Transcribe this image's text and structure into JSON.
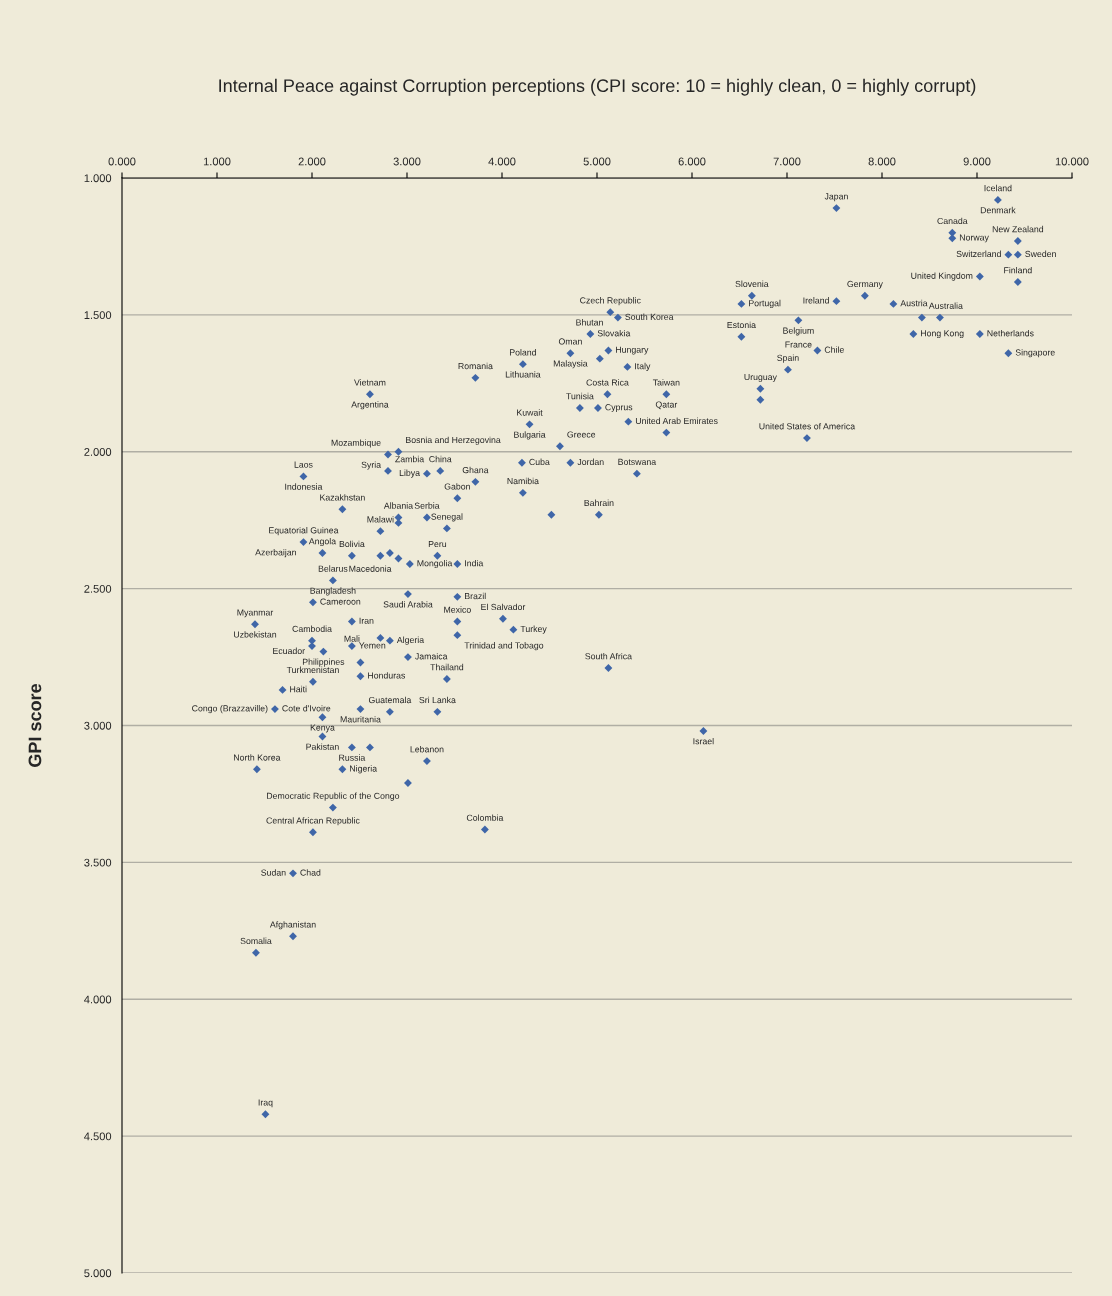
{
  "chart_data": {
    "type": "scatter",
    "title": "Internal Peace against Corruption perceptions (CPI score: 10 = highly clean, 0 = highly corrupt)",
    "ylabel": "GPI score",
    "xlim": [
      0,
      10
    ],
    "ylim": [
      5,
      1
    ],
    "xticks": [
      {
        "value": 0,
        "label": "0.000"
      },
      {
        "value": 1,
        "label": "1.000"
      },
      {
        "value": 2,
        "label": "2.000"
      },
      {
        "value": 3,
        "label": "3.000"
      },
      {
        "value": 4,
        "label": "4.000"
      },
      {
        "value": 5,
        "label": "5.000"
      },
      {
        "value": 6,
        "label": "6.000"
      },
      {
        "value": 7,
        "label": "7.000"
      },
      {
        "value": 8,
        "label": "8.000"
      },
      {
        "value": 9,
        "label": "9.000"
      },
      {
        "value": 10,
        "label": "10.000"
      }
    ],
    "yticks": [
      {
        "value": 1,
        "label": "1.000"
      },
      {
        "value": 1.5,
        "label": "1.500"
      },
      {
        "value": 2,
        "label": "2.000"
      },
      {
        "value": 2.5,
        "label": "2.500"
      },
      {
        "value": 3,
        "label": "3.000"
      },
      {
        "value": 3.5,
        "label": "3.500"
      },
      {
        "value": 4,
        "label": "4.000"
      },
      {
        "value": 4.5,
        "label": "4.500"
      },
      {
        "value": 5,
        "label": "5.000"
      }
    ],
    "grid": "y",
    "marker": "diamond",
    "series": [
      {
        "color": "#3f66a8",
        "x": [
          9.22,
          7.52,
          8.74,
          8.74,
          9.43,
          9.33,
          9.43,
          9.03,
          9.43,
          6.63,
          6.52,
          7.52,
          7.82,
          8.12,
          7.12,
          8.42,
          8.61,
          8.33,
          9.03,
          6.52,
          7.32,
          9.33,
          7.01,
          6.72,
          6.72,
          7.21,
          5.22,
          5.14,
          4.93,
          5.12,
          5.03,
          4.72,
          4.22,
          3.72,
          5.32,
          5.73,
          5.11,
          5.01,
          4.82,
          4.29,
          5.33,
          5.73,
          4.61,
          4.72,
          5.42,
          4.21,
          4.22,
          4.52,
          5.02,
          5.12,
          6.12,
          4.01,
          4.12,
          3.53,
          3.53,
          3.42,
          3.32,
          3.32,
          3.53,
          3.53,
          3.42,
          3.21,
          3.53,
          3.72,
          3.21,
          3.35,
          2.61,
          1.91,
          2.8,
          2.8,
          2.91,
          2.32,
          2.91,
          2.91,
          2.72,
          1.91,
          2.42,
          2.72,
          2.82,
          2.91,
          2.11,
          3.03,
          2.22,
          3.01,
          2.01,
          1.4,
          2.42,
          2.0,
          2.0,
          2.12,
          2.42,
          2.82,
          2.72,
          2.51,
          2.51,
          3.01,
          2.01,
          1.69,
          1.61,
          2.51,
          2.82,
          2.11,
          2.11,
          2.42,
          2.61,
          1.42,
          2.32,
          3.21,
          3.01,
          2.22,
          2.01,
          3.82,
          1.8,
          1.8,
          1.41,
          1.51
        ],
        "values": [
          1.08,
          1.11,
          1.2,
          1.22,
          1.23,
          1.28,
          1.28,
          1.36,
          1.38,
          1.43,
          1.46,
          1.45,
          1.43,
          1.46,
          1.52,
          1.51,
          1.51,
          1.57,
          1.57,
          1.58,
          1.63,
          1.64,
          1.7,
          1.77,
          1.81,
          1.95,
          1.51,
          1.49,
          1.57,
          1.63,
          1.66,
          1.64,
          1.68,
          1.73,
          1.69,
          1.79,
          1.79,
          1.84,
          1.84,
          1.9,
          1.89,
          1.93,
          1.98,
          2.04,
          2.08,
          2.04,
          2.15,
          2.23,
          2.23,
          2.79,
          3.02,
          2.61,
          2.65,
          2.62,
          2.67,
          2.83,
          2.95,
          2.38,
          2.41,
          2.53,
          2.28,
          2.24,
          2.17,
          2.11,
          2.08,
          2.07,
          1.79,
          2.09,
          2.07,
          2.01,
          2.0,
          2.21,
          2.24,
          2.26,
          2.29,
          2.33,
          2.38,
          2.38,
          2.37,
          2.39,
          2.37,
          2.41,
          2.47,
          2.52,
          2.55,
          2.63,
          2.62,
          2.69,
          2.71,
          2.73,
          2.71,
          2.69,
          2.68,
          2.77,
          2.82,
          2.75,
          2.84,
          2.87,
          2.94,
          2.94,
          2.95,
          2.97,
          3.04,
          3.08,
          3.08,
          3.16,
          3.16,
          3.13,
          3.21,
          3.3,
          3.39,
          3.38,
          3.54,
          3.77,
          3.83,
          4.42
        ]
      }
    ],
    "annotations": [
      {
        "text": "Iceland",
        "x": 9.22,
        "y": 1.08
      },
      {
        "text": "Denmark",
        "x": 9.22,
        "y": 1.08
      },
      {
        "text": "Japan",
        "x": 7.52,
        "y": 1.11
      },
      {
        "text": "Canada",
        "x": 8.74,
        "y": 1.2
      },
      {
        "text": "Norway",
        "x": 8.74,
        "y": 1.22
      },
      {
        "text": "New Zealand",
        "x": 9.43,
        "y": 1.23
      },
      {
        "text": "Switzerland",
        "x": 9.33,
        "y": 1.28
      },
      {
        "text": "Sweden",
        "x": 9.43,
        "y": 1.28
      },
      {
        "text": "Finland",
        "x": 9.43,
        "y": 1.38
      },
      {
        "text": "Slovenia",
        "x": 6.63,
        "y": 1.43
      },
      {
        "text": "Germany",
        "x": 7.82,
        "y": 1.43
      },
      {
        "text": "Portugal",
        "x": 6.52,
        "y": 1.46
      },
      {
        "text": "Ireland",
        "x": 7.52,
        "y": 1.45
      },
      {
        "text": "Austria",
        "x": 8.12,
        "y": 1.46
      },
      {
        "text": "Belgium",
        "x": 7.12,
        "y": 1.52
      },
      {
        "text": "Australia",
        "x": 8.42,
        "y": 1.51
      },
      {
        "text": "United Kingdom",
        "x": 9.03,
        "y": 1.36
      },
      {
        "text": "Estonia",
        "x": 6.52,
        "y": 1.58
      },
      {
        "text": "Hong Kong",
        "x": 8.33,
        "y": 1.57
      },
      {
        "text": "Netherlands",
        "x": 9.03,
        "y": 1.57
      },
      {
        "text": "France",
        "x": 7.12,
        "y": 1.52
      },
      {
        "text": "Chile",
        "x": 7.32,
        "y": 1.63
      },
      {
        "text": "Singapore",
        "x": 9.33,
        "y": 1.64
      },
      {
        "text": "Spain",
        "x": 7.01,
        "y": 1.7
      },
      {
        "text": "Uruguay",
        "x": 6.72,
        "y": 1.77
      },
      {
        "text": "United States of America",
        "x": 7.21,
        "y": 1.95
      },
      {
        "text": "Czech Republic",
        "x": 5.14,
        "y": 1.49
      },
      {
        "text": "Bhutan",
        "x": 5.14,
        "y": 1.49
      },
      {
        "text": "Slovakia",
        "x": 4.93,
        "y": 1.57
      },
      {
        "text": "South Korea",
        "x": 5.22,
        "y": 1.51
      },
      {
        "text": "Oman",
        "x": 4.72,
        "y": 1.64
      },
      {
        "text": "Poland",
        "x": 4.22,
        "y": 1.68
      },
      {
        "text": "Hungary",
        "x": 5.12,
        "y": 1.63
      },
      {
        "text": "Romania",
        "x": 3.72,
        "y": 1.73
      },
      {
        "text": "Malaysia",
        "x": 4.72,
        "y": 1.64
      },
      {
        "text": "Italy",
        "x": 5.32,
        "y": 1.69
      },
      {
        "text": "Taiwan",
        "x": 5.73,
        "y": 1.79
      },
      {
        "text": "Lithuania",
        "x": 4.22,
        "y": 1.68
      },
      {
        "text": "Costa Rica",
        "x": 5.11,
        "y": 1.79
      },
      {
        "text": "Qatar",
        "x": 5.73,
        "y": 1.79
      },
      {
        "text": "Cyprus",
        "x": 5.01,
        "y": 1.84
      },
      {
        "text": "Kuwait",
        "x": 4.29,
        "y": 1.9
      },
      {
        "text": "Bulgaria",
        "x": 4.29,
        "y": 1.9
      },
      {
        "text": "United Arab Emirates",
        "x": 5.33,
        "y": 1.89
      },
      {
        "text": "Greece",
        "x": 4.61,
        "y": 1.98
      },
      {
        "text": "Tunisia",
        "x": 4.82,
        "y": 1.84
      },
      {
        "text": "Jordan",
        "x": 4.72,
        "y": 2.04
      },
      {
        "text": "Botswana",
        "x": 5.42,
        "y": 2.08
      },
      {
        "text": "Cuba",
        "x": 4.21,
        "y": 2.04
      },
      {
        "text": "Namibia",
        "x": 4.22,
        "y": 2.15
      },
      {
        "text": "Bahrain",
        "x": 5.02,
        "y": 2.23
      },
      {
        "text": "Vietnam",
        "x": 2.61,
        "y": 1.79
      },
      {
        "text": "Argentina",
        "x": 2.61,
        "y": 1.79
      },
      {
        "text": "Libya",
        "x": 3.21,
        "y": 2.08
      },
      {
        "text": "Mozambique",
        "x": 2.8,
        "y": 2.01
      },
      {
        "text": "Bosnia and Herzegovina",
        "x": 2.91,
        "y": 2.0
      },
      {
        "text": "Ghana",
        "x": 3.72,
        "y": 2.11
      },
      {
        "text": "Laos",
        "x": 1.91,
        "y": 2.09
      },
      {
        "text": "Syria",
        "x": 2.8,
        "y": 2.01
      },
      {
        "text": "China",
        "x": 3.35,
        "y": 2.07
      },
      {
        "text": "Indonesia",
        "x": 1.91,
        "y": 2.09
      },
      {
        "text": "Zambia",
        "x": 2.8,
        "y": 2.07
      },
      {
        "text": "Gabon",
        "x": 3.53,
        "y": 2.17
      },
      {
        "text": "Kazakhstan",
        "x": 2.32,
        "y": 2.21
      },
      {
        "text": "Albania",
        "x": 2.91,
        "y": 2.24
      },
      {
        "text": "Malawi",
        "x": 2.72,
        "y": 2.29
      },
      {
        "text": "Serbia",
        "x": 3.21,
        "y": 2.24
      },
      {
        "text": "Equatorial Guinea",
        "x": 1.91,
        "y": 2.33
      },
      {
        "text": "Senegal",
        "x": 3.42,
        "y": 2.28
      },
      {
        "text": "Azerbaijan",
        "x": 1.91,
        "y": 2.33
      },
      {
        "text": "Bolivia",
        "x": 2.42,
        "y": 2.38
      },
      {
        "text": "Macedonia",
        "x": 2.91,
        "y": 2.39
      },
      {
        "text": "Peru",
        "x": 3.32,
        "y": 2.38
      },
      {
        "text": "Angola",
        "x": 2.11,
        "y": 2.37
      },
      {
        "text": "Mongolia",
        "x": 3.03,
        "y": 2.41
      },
      {
        "text": "India",
        "x": 3.53,
        "y": 2.41
      },
      {
        "text": "Belarus",
        "x": 2.22,
        "y": 2.47
      },
      {
        "text": "Bangladesh",
        "x": 2.22,
        "y": 2.47
      },
      {
        "text": "Brazil",
        "x": 3.53,
        "y": 2.53
      },
      {
        "text": "Myanmar",
        "x": 1.4,
        "y": 2.63
      },
      {
        "text": "Cameroon",
        "x": 2.01,
        "y": 2.55
      },
      {
        "text": "Saudi Arabia",
        "x": 3.01,
        "y": 2.52
      },
      {
        "text": "El Salvador",
        "x": 4.01,
        "y": 2.61
      },
      {
        "text": "Turkey",
        "x": 4.12,
        "y": 2.65
      },
      {
        "text": "Mexico",
        "x": 3.53,
        "y": 2.62
      },
      {
        "text": "Cambodia",
        "x": 2.0,
        "y": 2.69
      },
      {
        "text": "Iran",
        "x": 2.42,
        "y": 2.62
      },
      {
        "text": "Mali",
        "x": 2.42,
        "y": 2.62
      },
      {
        "text": "Ecuador",
        "x": 2.0,
        "y": 2.69
      },
      {
        "text": "Yemen",
        "x": 2.42,
        "y": 2.71
      },
      {
        "text": "Algeria",
        "x": 2.82,
        "y": 2.69
      },
      {
        "text": "Trinidad and Tobago",
        "x": 3.53,
        "y": 2.67
      },
      {
        "text": "Philippines",
        "x": 2.12,
        "y": 2.73
      },
      {
        "text": "Turkmenistan",
        "x": 2.01,
        "y": 2.84
      },
      {
        "text": "Uzbekistan",
        "x": 1.4,
        "y": 2.63
      },
      {
        "text": "Jamaica",
        "x": 3.01,
        "y": 2.75
      },
      {
        "text": "South Africa",
        "x": 5.12,
        "y": 2.79
      },
      {
        "text": "Haiti",
        "x": 1.69,
        "y": 2.87
      },
      {
        "text": "Honduras",
        "x": 2.51,
        "y": 2.82
      },
      {
        "text": "Thailand",
        "x": 3.42,
        "y": 2.83
      },
      {
        "text": "Congo (Brazzaville)",
        "x": 1.61,
        "y": 2.94
      },
      {
        "text": "Guatemala",
        "x": 2.82,
        "y": 2.95
      },
      {
        "text": "Israel",
        "x": 6.12,
        "y": 3.02
      },
      {
        "text": "Cote d'Ivoire",
        "x": 1.61,
        "y": 2.94
      },
      {
        "text": "Kenya",
        "x": 2.11,
        "y": 2.97
      },
      {
        "text": "Mauritania",
        "x": 2.51,
        "y": 2.94
      },
      {
        "text": "Pakistan",
        "x": 2.11,
        "y": 3.04
      },
      {
        "text": "Sri Lanka",
        "x": 3.32,
        "y": 2.95
      },
      {
        "text": "North Korea",
        "x": 1.42,
        "y": 3.16
      },
      {
        "text": "Russia",
        "x": 2.42,
        "y": 3.08
      },
      {
        "text": "Lebanon",
        "x": 3.21,
        "y": 3.13
      },
      {
        "text": "Nigeria",
        "x": 2.32,
        "y": 3.16
      },
      {
        "text": "Democratic Republic of the Congo",
        "x": 2.22,
        "y": 3.3
      },
      {
        "text": "Colombia",
        "x": 3.82,
        "y": 3.38
      },
      {
        "text": "Central African Republic",
        "x": 2.01,
        "y": 3.39
      },
      {
        "text": "Chad",
        "x": 1.8,
        "y": 3.54
      },
      {
        "text": "Sudan",
        "x": 1.8,
        "y": 3.54
      },
      {
        "text": "Afghanistan",
        "x": 1.8,
        "y": 3.77
      },
      {
        "text": "Somalia",
        "x": 1.41,
        "y": 3.83
      },
      {
        "text": "Iraq",
        "x": 1.51,
        "y": 4.42
      }
    ]
  }
}
